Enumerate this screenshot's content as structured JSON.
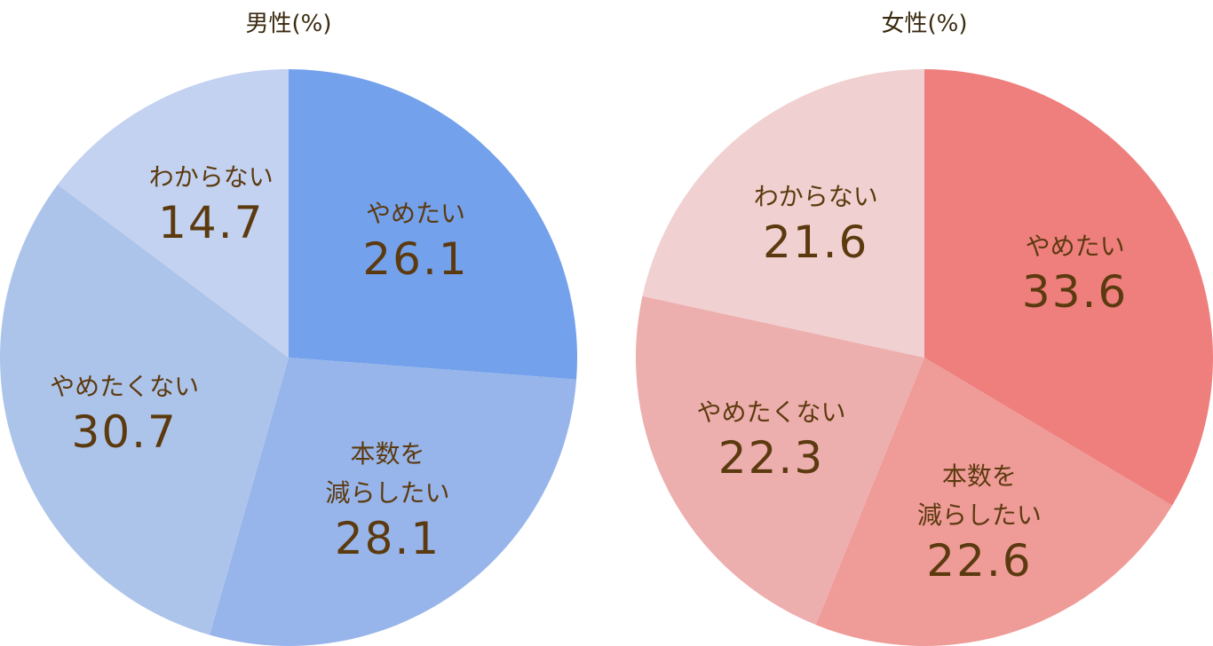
{
  "chart_data": [
    {
      "type": "pie",
      "title": "男性(%)",
      "categories": [
        "やめたい",
        "本数を\n減らしたい",
        "やめたくない",
        "わからない"
      ],
      "values": [
        26.1,
        28.1,
        30.7,
        14.7
      ],
      "colors": [
        "#74a1ec",
        "#97b5ea",
        "#adc4ea",
        "#c3d2f0"
      ]
    },
    {
      "type": "pie",
      "title": "女性(%)",
      "categories": [
        "やめたい",
        "本数を\n減らしたい",
        "やめたくない",
        "わからない"
      ],
      "values": [
        33.6,
        22.6,
        22.3,
        21.6
      ],
      "colors": [
        "#ee7f7d",
        "#ef9b98",
        "#edaeae",
        "#f0d0d0"
      ]
    }
  ]
}
